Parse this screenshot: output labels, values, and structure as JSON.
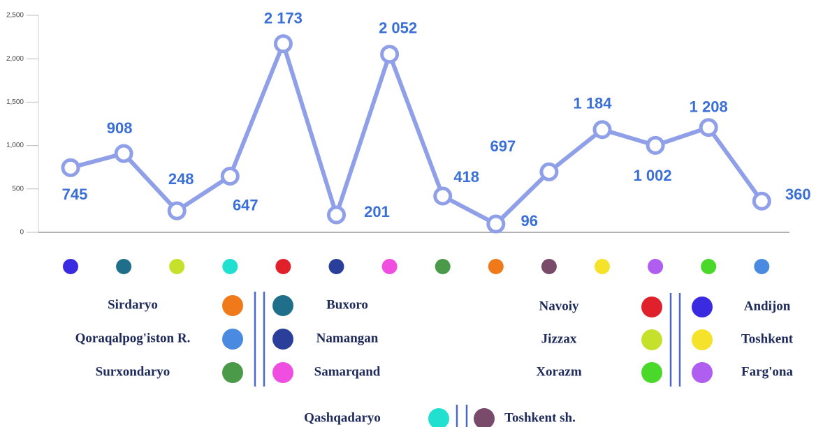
{
  "chart_data": {
    "type": "line",
    "categories": [
      "Andijon",
      "Buxoro",
      "Jizzax",
      "Qashqadaryo",
      "Navoiy",
      "Namangan",
      "Samarqand",
      "Surxondaryo",
      "Sirdaryo",
      "Toshkent sh.",
      "Toshkent",
      "Farg'ona",
      "Xorazm",
      "Qoraqalpog'iston R."
    ],
    "category_colors": [
      "#3b2be0",
      "#1f6f8b",
      "#c6e12b",
      "#22e0d0",
      "#e0202a",
      "#2a3f9a",
      "#f04ee0",
      "#4a9a4a",
      "#f07a1a",
      "#7a4a6a",
      "#f5e22a",
      "#b05ef0",
      "#4ad82a",
      "#4a8ae0"
    ],
    "series": [
      {
        "color": "#8fa0e8",
        "values": [
          745,
          908,
          248,
          647,
          2173,
          201,
          2052,
          418,
          96,
          697,
          1184,
          1002,
          1208,
          360
        ],
        "value_labels": [
          "745",
          "908",
          "248",
          "647",
          "2 173",
          "201",
          "2 052",
          "418",
          "96",
          "697",
          "1 184",
          "1 002",
          "1 208",
          "360"
        ]
      }
    ],
    "ylim": [
      0,
      2500
    ],
    "yticks": [
      0,
      500,
      {
        "value": 1000,
        "label": "1,000"
      },
      {
        "value": 1500,
        "label": "1,500"
      },
      {
        "value": 2000,
        "label": "2,000"
      },
      {
        "value": 2500,
        "label": "2,500"
      }
    ]
  }
}
